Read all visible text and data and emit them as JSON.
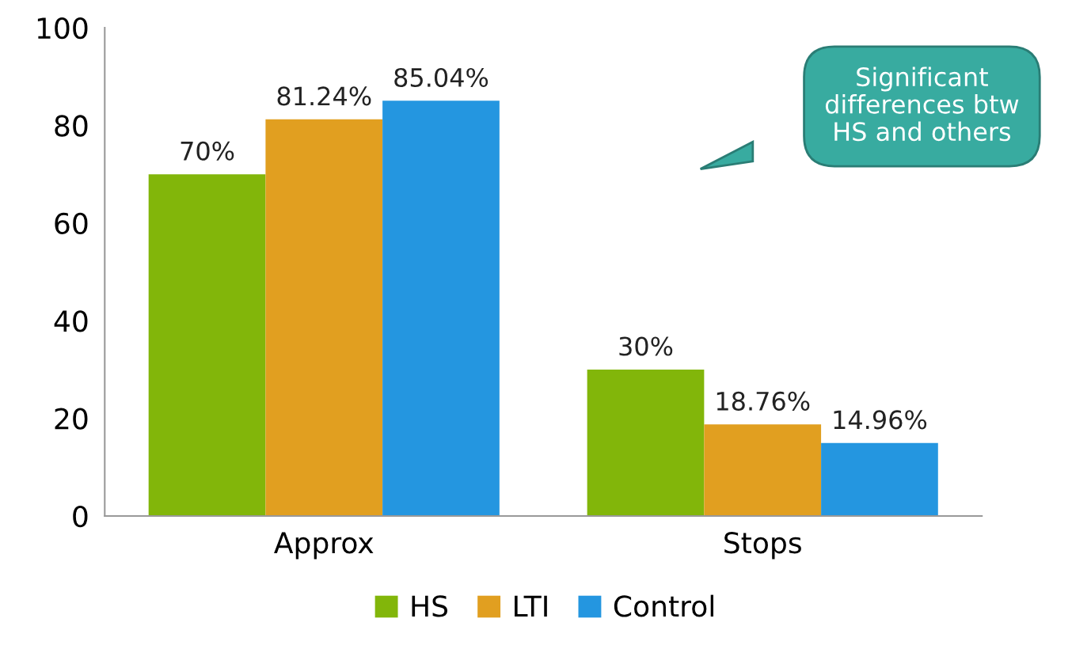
{
  "chart_data": {
    "type": "bar",
    "categories": [
      "Approx",
      "Stops"
    ],
    "series": [
      {
        "name": "HS",
        "color": "#82b60a",
        "values": [
          70,
          30
        ],
        "value_labels": [
          "70%",
          "30%"
        ]
      },
      {
        "name": "LTI",
        "color": "#e19f20",
        "values": [
          81.24,
          18.76
        ],
        "value_labels": [
          "81.24%",
          "18.76%"
        ]
      },
      {
        "name": "Control",
        "color": "#2496e0",
        "values": [
          85.04,
          14.96
        ],
        "value_labels": [
          "85.04%",
          "14.96%"
        ]
      }
    ],
    "ylim": [
      0,
      100
    ],
    "yticks": [
      0,
      20,
      40,
      60,
      80,
      100
    ],
    "grid": false,
    "legend": "bottom",
    "annotations": [
      "Significant\ndifferences btw\nHS and others"
    ]
  }
}
